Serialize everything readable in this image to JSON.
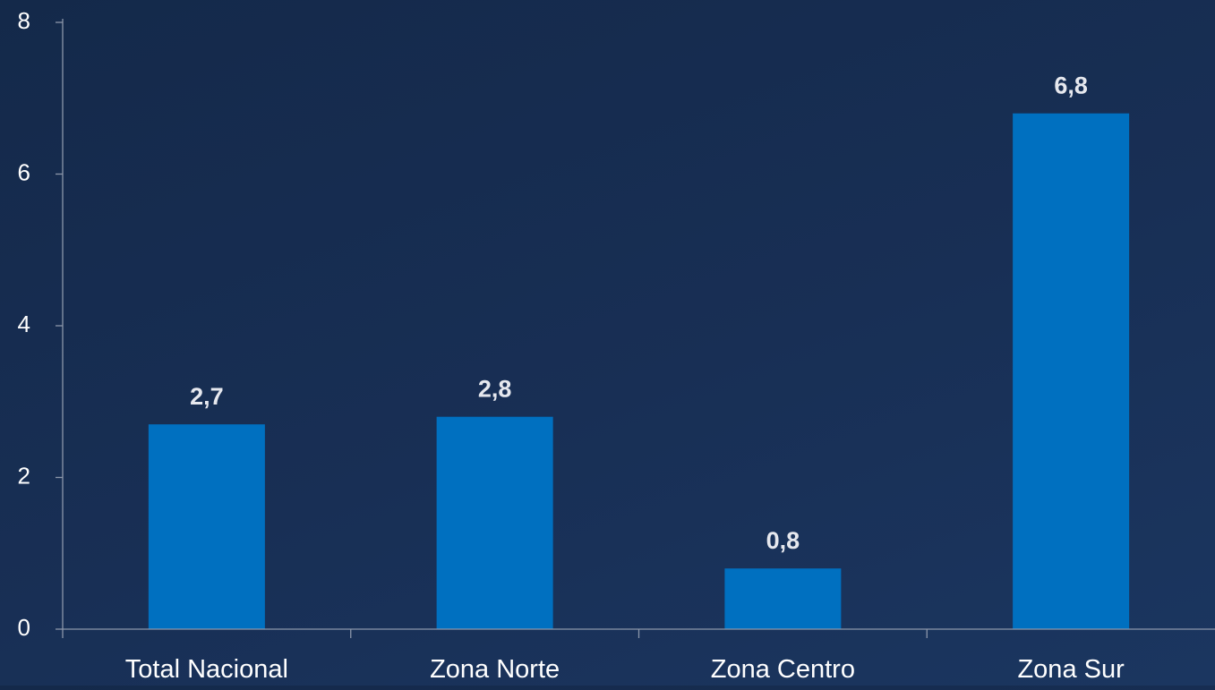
{
  "chart_data": {
    "type": "bar",
    "title": "",
    "xlabel": "",
    "ylabel": "",
    "categories": [
      "Total Nacional",
      "Zona Norte",
      "Zona Centro",
      "Zona Sur"
    ],
    "values": [
      2.7,
      2.8,
      0.8,
      6.8
    ],
    "data_labels": [
      "2,7",
      "2,8",
      "0,8",
      "6,8"
    ],
    "ylim": [
      0,
      8
    ],
    "yticks": [
      0,
      2,
      4,
      6,
      8
    ],
    "ytick_labels": [
      "0",
      "2",
      "4",
      "6",
      "8"
    ],
    "grid": false,
    "legend": "none",
    "colors": {
      "bar": "#0070c0",
      "background": "#172c50",
      "axis": "#8c97aa",
      "text": "#ffffff",
      "data_label": "#e6e8ee"
    }
  }
}
